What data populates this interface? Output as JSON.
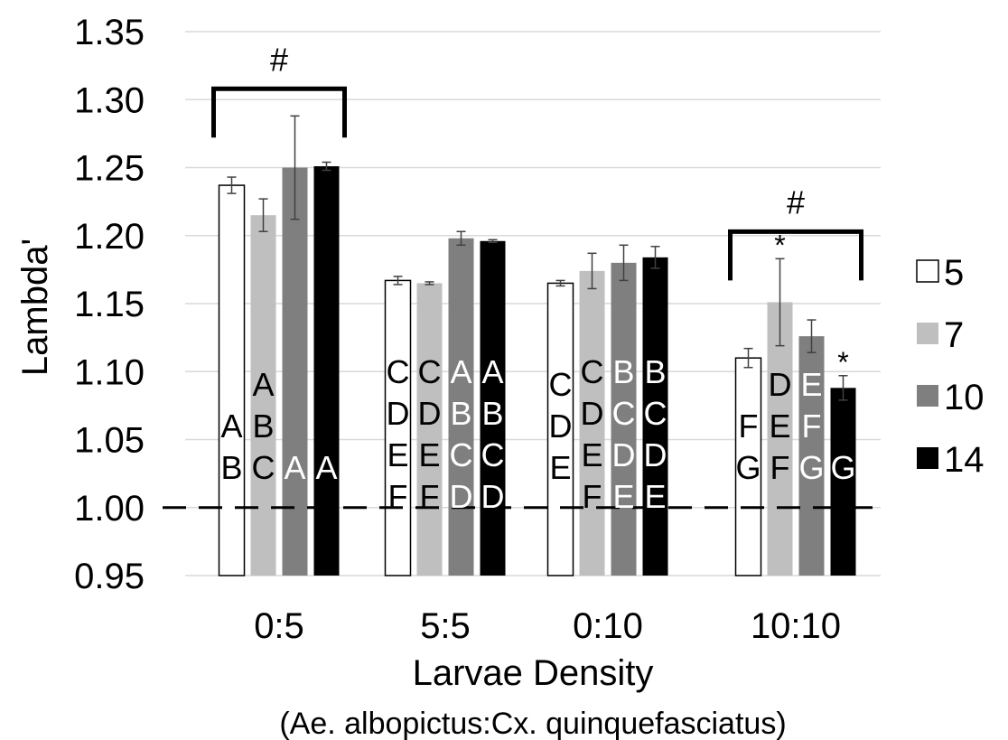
{
  "chart_data": {
    "type": "bar",
    "xlabel": "Larvae Density",
    "xlabel_sub": "(Ae. albopictus:Cx. quinquefasciatus)",
    "ylabel": "Lambda'",
    "ylim": [
      0.95,
      1.35
    ],
    "yticks": [
      "0.95",
      "1.00",
      "1.05",
      "1.10",
      "1.15",
      "1.20",
      "1.25",
      "1.30",
      "1.35"
    ],
    "grid": true,
    "legend_position": "right",
    "reference_line": 1.0,
    "categories": [
      "0:5",
      "5:5",
      "0:10",
      "10:10"
    ],
    "series": [
      {
        "name": "5",
        "color": "#ffffff",
        "values": [
          1.237,
          1.167,
          1.165,
          1.11
        ],
        "errors": [
          0.006,
          0.003,
          0.002,
          0.007
        ]
      },
      {
        "name": "7",
        "color": "#bfbfbf",
        "values": [
          1.215,
          1.165,
          1.174,
          1.151
        ],
        "errors": [
          0.012,
          0.001,
          0.013,
          0.032
        ]
      },
      {
        "name": "10",
        "color": "#7f7f7f",
        "values": [
          1.25,
          1.198,
          1.18,
          1.126
        ],
        "errors": [
          0.038,
          0.005,
          0.013,
          0.012
        ]
      },
      {
        "name": "14",
        "color": "#000000",
        "values": [
          1.251,
          1.196,
          1.184,
          1.088
        ],
        "errors": [
          0.003,
          0.001,
          0.008,
          0.009
        ]
      }
    ],
    "group_letters": [
      [
        [
          "A",
          "B"
        ],
        [
          "A",
          "B",
          "C"
        ],
        [
          "A"
        ],
        [
          "A"
        ]
      ],
      [
        [
          "C",
          "D",
          "E",
          "F"
        ],
        [
          "C",
          "D",
          "E",
          "F"
        ],
        [
          "A",
          "B",
          "C",
          "D"
        ],
        [
          "A",
          "B",
          "C",
          "D"
        ]
      ],
      [
        [
          "C",
          "D",
          "E"
        ],
        [
          "C",
          "D",
          "E",
          "F"
        ],
        [
          "B",
          "C",
          "D",
          "E"
        ],
        [
          "B",
          "C",
          "D",
          "E"
        ]
      ],
      [
        [
          "F",
          "G"
        ],
        [
          "D",
          "E",
          "F"
        ],
        [
          "E",
          "F",
          "G"
        ],
        [
          "G"
        ]
      ]
    ],
    "asterisks": [
      {
        "category": "10:10",
        "series": "7",
        "text": "*"
      },
      {
        "category": "10:10",
        "series": "14",
        "text": "*"
      }
    ],
    "brackets": [
      {
        "category": "0:5",
        "text": "#"
      },
      {
        "category": "10:10",
        "text": "#"
      }
    ]
  }
}
